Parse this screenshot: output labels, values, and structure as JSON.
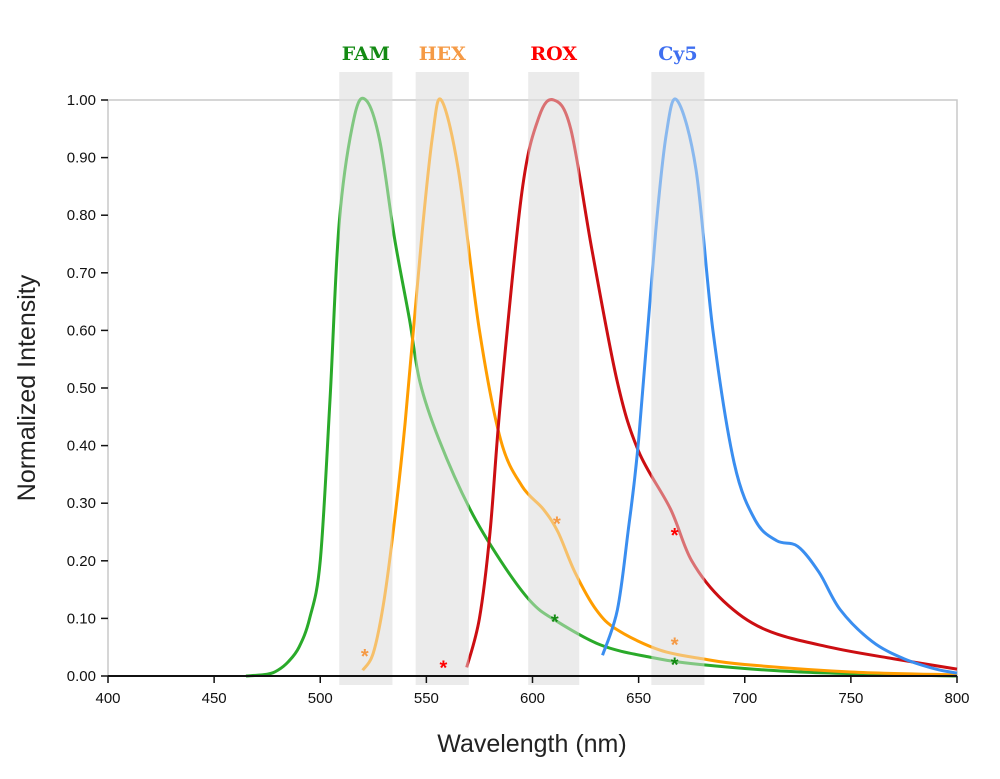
{
  "chart_data": {
    "type": "line",
    "title": "",
    "xlabel": "Wavelength (nm)",
    "ylabel": "Normalized Intensity",
    "xlim": [
      400,
      800
    ],
    "ylim": [
      0,
      1
    ],
    "xticks": [
      "400",
      "450",
      "500",
      "550",
      "600",
      "650",
      "700",
      "750",
      "800"
    ],
    "yticks": [
      "0.00",
      "0.10",
      "0.20",
      "0.30",
      "0.40",
      "0.50",
      "0.60",
      "0.70",
      "0.80",
      "0.90",
      "1.00"
    ],
    "grid": false,
    "bands": [
      {
        "label": "FAM",
        "range": [
          509,
          534
        ],
        "label_color": "#138a13"
      },
      {
        "label": "HEX",
        "range": [
          545,
          570
        ],
        "label_color": "#f59a45"
      },
      {
        "label": "ROX",
        "range": [
          598,
          622
        ],
        "label_color": "#ff0000"
      },
      {
        "label": "Cy5",
        "range": [
          656,
          681
        ],
        "label_color": "#3f6ff0"
      }
    ],
    "series": [
      {
        "color": "#2aaa2a",
        "points": [
          [
            465,
            0
          ],
          [
            475,
            0.003
          ],
          [
            480,
            0.01
          ],
          [
            485,
            0.025
          ],
          [
            490,
            0.05
          ],
          [
            495,
            0.1
          ],
          [
            500,
            0.2
          ],
          [
            504.6,
            0.48
          ],
          [
            509,
            0.79
          ],
          [
            516,
            0.97
          ],
          [
            521.5,
            1.0
          ],
          [
            528,
            0.93
          ],
          [
            535,
            0.76
          ],
          [
            542,
            0.62
          ],
          [
            547,
            0.51
          ],
          [
            556,
            0.41
          ],
          [
            570.5,
            0.29
          ],
          [
            585,
            0.2
          ],
          [
            599,
            0.13
          ],
          [
            610.6,
            0.097
          ],
          [
            632,
            0.054
          ],
          [
            655,
            0.033
          ],
          [
            679,
            0.02
          ],
          [
            726,
            0.007
          ],
          [
            800,
            0
          ]
        ]
      },
      {
        "color": "#ff9d00",
        "points": [
          [
            520,
            0.01
          ],
          [
            525,
            0.04
          ],
          [
            530,
            0.13
          ],
          [
            535,
            0.27
          ],
          [
            540,
            0.44
          ],
          [
            548,
            0.77
          ],
          [
            553,
            0.94
          ],
          [
            557,
            1.0
          ],
          [
            565,
            0.88
          ],
          [
            575,
            0.6
          ],
          [
            585,
            0.41
          ],
          [
            595,
            0.33
          ],
          [
            605,
            0.29
          ],
          [
            612,
            0.25
          ],
          [
            620,
            0.18
          ],
          [
            630,
            0.115
          ],
          [
            640,
            0.08
          ],
          [
            660,
            0.045
          ],
          [
            680,
            0.03
          ],
          [
            700,
            0.02
          ],
          [
            750,
            0.007
          ],
          [
            800,
            0.002
          ]
        ]
      },
      {
        "color": "#cc0e12",
        "points": [
          [
            569,
            0.015
          ],
          [
            575,
            0.1
          ],
          [
            580,
            0.25
          ],
          [
            585,
            0.48
          ],
          [
            595,
            0.84
          ],
          [
            603,
            0.97
          ],
          [
            610,
            1.0
          ],
          [
            618,
            0.95
          ],
          [
            628,
            0.74
          ],
          [
            640,
            0.51
          ],
          [
            650,
            0.39
          ],
          [
            665,
            0.29
          ],
          [
            675,
            0.2
          ],
          [
            690,
            0.13
          ],
          [
            710,
            0.08
          ],
          [
            740,
            0.05
          ],
          [
            770,
            0.03
          ],
          [
            800,
            0.012
          ]
        ]
      },
      {
        "color": "#3a8ef0",
        "points": [
          [
            633,
            0.036
          ],
          [
            640,
            0.115
          ],
          [
            645,
            0.25
          ],
          [
            650,
            0.41
          ],
          [
            658,
            0.77
          ],
          [
            663,
            0.94
          ],
          [
            668,
            1.0
          ],
          [
            677,
            0.88
          ],
          [
            685,
            0.6
          ],
          [
            695,
            0.37
          ],
          [
            705,
            0.27
          ],
          [
            715,
            0.235
          ],
          [
            725,
            0.225
          ],
          [
            735,
            0.18
          ],
          [
            745,
            0.115
          ],
          [
            760,
            0.06
          ],
          [
            775,
            0.03
          ],
          [
            790,
            0.012
          ],
          [
            800,
            0.005
          ]
        ]
      }
    ],
    "annotations": [
      {
        "text": "*",
        "x": 521,
        "y": 0.04,
        "color": "#f59a45"
      },
      {
        "text": "*",
        "x": 558,
        "y": 0.02,
        "color": "#ff0000"
      },
      {
        "text": "*",
        "x": 611.5,
        "y": 0.27,
        "color": "#f59a45"
      },
      {
        "text": "*",
        "x": 610.5,
        "y": 0.1,
        "color": "#138a13"
      },
      {
        "text": "*",
        "x": 667,
        "y": 0.25,
        "color": "#ff0000"
      },
      {
        "text": "*",
        "x": 667,
        "y": 0.06,
        "color": "#f59a45"
      },
      {
        "text": "*",
        "x": 667,
        "y": 0.025,
        "color": "#138a13"
      }
    ]
  }
}
